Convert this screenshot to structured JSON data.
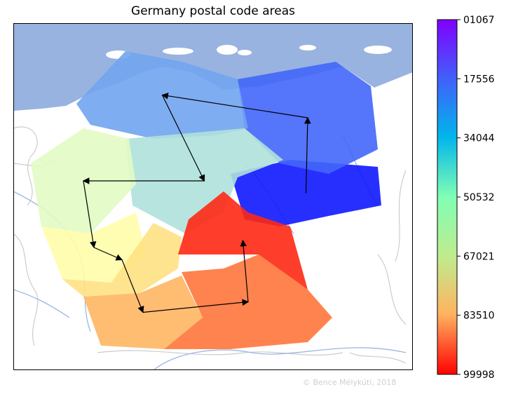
{
  "chart_data": {
    "type": "heatmap",
    "title": "Germany postal code areas",
    "colorbar": {
      "colormap": "rainbow",
      "range": [
        "01067",
        "99998"
      ],
      "ticks": [
        "01067",
        "17556",
        "34044",
        "50532",
        "67021",
        "83510",
        "99998"
      ]
    },
    "regions": [
      {
        "prefix": "0",
        "approx_code": 4000
      },
      {
        "prefix": "1",
        "approx_code": 14000
      },
      {
        "prefix": "2",
        "approx_code": 23000
      },
      {
        "prefix": "3",
        "approx_code": 35000
      },
      {
        "prefix": "4",
        "approx_code": 45000
      },
      {
        "prefix": "5",
        "approx_code": 54000
      },
      {
        "prefix": "6",
        "approx_code": 66000
      },
      {
        "prefix": "7",
        "approx_code": 75000
      },
      {
        "prefix": "8",
        "approx_code": 85000
      },
      {
        "prefix": "9",
        "approx_code": 95000
      }
    ],
    "arrows": [
      {
        "from": "0",
        "to": "1"
      },
      {
        "from": "1",
        "to": "2"
      },
      {
        "from": "2",
        "to": "3"
      },
      {
        "from": "3",
        "to": "4"
      },
      {
        "from": "4",
        "to": "5"
      },
      {
        "from": "5",
        "to": "6"
      },
      {
        "from": "6",
        "to": "7"
      },
      {
        "from": "7",
        "to": "8"
      },
      {
        "from": "8",
        "to": "9"
      }
    ],
    "colors": {
      "sea": "#98b3e0",
      "land": "#ffffff",
      "borders": "#cccccc",
      "rivers": "#9ab8e0"
    }
  },
  "footer": {
    "credit": "© Bence Mélykúti, 2018"
  }
}
